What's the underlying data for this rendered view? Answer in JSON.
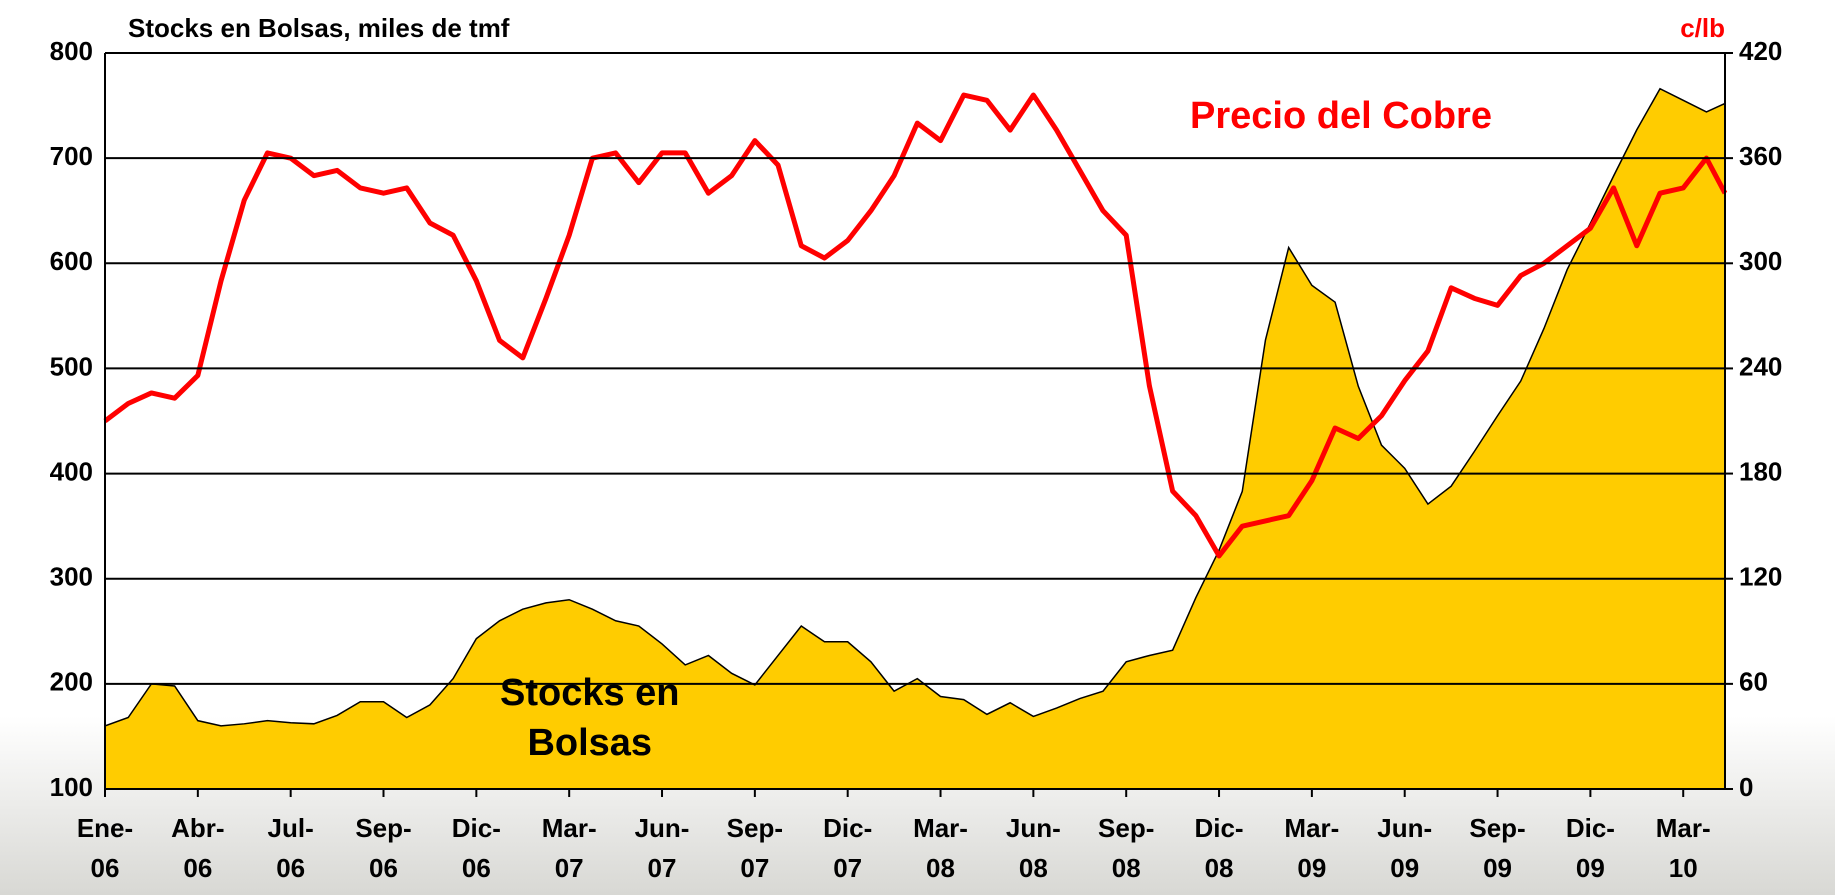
{
  "chart_data": {
    "type": "area_line",
    "title": "Stocks en Bolsas, miles de tmf",
    "y2_label": "c/lb",
    "annotations": [
      "Precio del Cobre",
      "Stocks en\nBolsas"
    ],
    "xlim": [
      0,
      17.45
    ],
    "xticks": [
      {
        "value": 0,
        "label": "Ene-\n06"
      },
      {
        "value": 1,
        "label": "Abr-\n06"
      },
      {
        "value": 2,
        "label": "Jul-\n06"
      },
      {
        "value": 3,
        "label": "Sep-\n06"
      },
      {
        "value": 4,
        "label": "Dic-\n06"
      },
      {
        "value": 5,
        "label": "Mar-\n07"
      },
      {
        "value": 6,
        "label": "Jun-\n07"
      },
      {
        "value": 7,
        "label": "Sep-\n07"
      },
      {
        "value": 8,
        "label": "Dic-\n07"
      },
      {
        "value": 9,
        "label": "Mar-\n08"
      },
      {
        "value": 10,
        "label": "Jun-\n08"
      },
      {
        "value": 11,
        "label": "Sep-\n08"
      },
      {
        "value": 12,
        "label": "Dic-\n08"
      },
      {
        "value": 13,
        "label": "Mar-\n09"
      },
      {
        "value": 14,
        "label": "Jun-\n09"
      },
      {
        "value": 15,
        "label": "Sep-\n09"
      },
      {
        "value": 16,
        "label": "Dic-\n09"
      },
      {
        "value": 17,
        "label": "Mar-\n10"
      }
    ],
    "ylim": [
      100,
      800
    ],
    "yticks": [
      100,
      200,
      300,
      400,
      500,
      600,
      700,
      800
    ],
    "y2lim": [
      0,
      420
    ],
    "y2ticks": [
      0,
      60,
      120,
      180,
      240,
      300,
      360,
      420
    ],
    "grid": true,
    "x": [
      0,
      0.25,
      0.5,
      0.75,
      1,
      1.25,
      1.5,
      1.75,
      2,
      2.25,
      2.5,
      2.75,
      3,
      3.25,
      3.5,
      3.75,
      4,
      4.25,
      4.5,
      4.75,
      5,
      5.25,
      5.5,
      5.75,
      6,
      6.25,
      6.5,
      6.75,
      7,
      7.25,
      7.5,
      7.75,
      8,
      8.25,
      8.5,
      8.75,
      9,
      9.25,
      9.5,
      9.75,
      10,
      10.25,
      10.5,
      10.75,
      11,
      11.25,
      11.5,
      11.75,
      12,
      12.25,
      12.5,
      12.75,
      13,
      13.25,
      13.5,
      13.75,
      14,
      14.25,
      14.5,
      14.75,
      15,
      15.25,
      15.5,
      15.75,
      16,
      16.25,
      16.5,
      16.75,
      17,
      17.25,
      17.45
    ],
    "series": [
      {
        "name": "Stocks en Bolsas",
        "color": "#ffcc00",
        "axis": "y",
        "kind": "area",
        "values": [
          160,
          168,
          200,
          198,
          165,
          160,
          162,
          165,
          163,
          162,
          170,
          183,
          183,
          168,
          180,
          205,
          243,
          260,
          271,
          277,
          280,
          271,
          260,
          255,
          238,
          218,
          227,
          210,
          199,
          227,
          255,
          240,
          240,
          221,
          193,
          205,
          188,
          185,
          171,
          182,
          169,
          177,
          186,
          193,
          221,
          227,
          232,
          282,
          327,
          383,
          527,
          615,
          579,
          563,
          483,
          427,
          405,
          371,
          388,
          421,
          455,
          488,
          538,
          594,
          638,
          683,
          727,
          766,
          755,
          744,
          752
        ]
      },
      {
        "name": "Precio del Cobre",
        "color": "#ff0000",
        "axis": "y2",
        "kind": "line",
        "values": [
          210,
          220,
          226,
          223,
          236,
          290,
          336,
          363,
          360,
          350,
          353,
          343,
          340,
          343,
          323,
          316,
          290,
          256,
          246,
          280,
          316,
          360,
          363,
          346,
          363,
          363,
          340,
          350,
          370,
          356,
          310,
          303,
          313,
          330,
          350,
          380,
          370,
          396,
          393,
          376,
          396,
          376,
          353,
          330,
          316,
          230,
          170,
          156,
          133,
          150,
          153,
          156,
          176,
          206,
          200,
          213,
          233,
          250,
          286,
          280,
          276,
          293,
          300,
          310,
          320,
          343,
          310,
          340,
          343,
          360,
          340
        ]
      }
    ]
  }
}
